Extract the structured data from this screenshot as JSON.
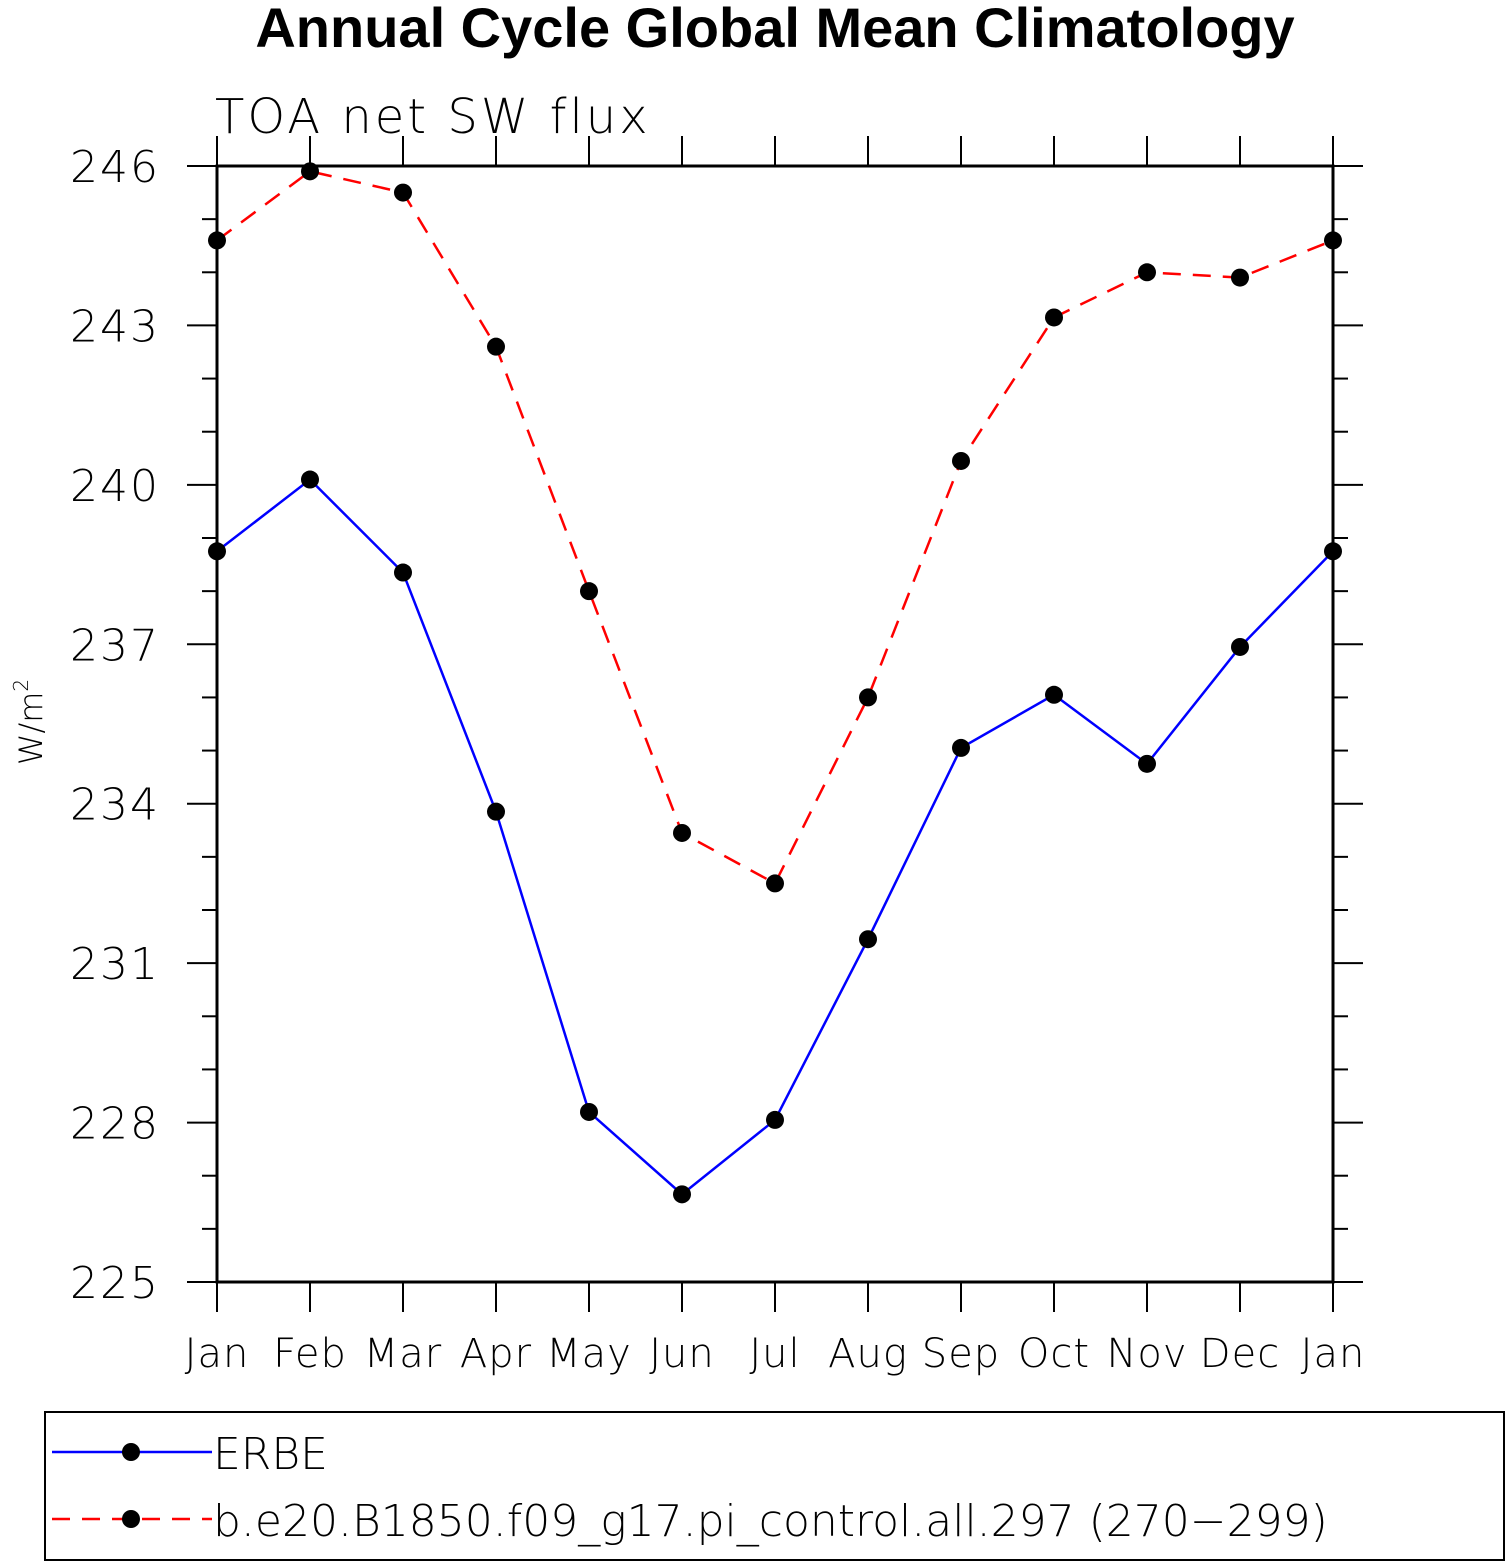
{
  "chart_data": {
    "type": "line",
    "title": "Annual Cycle Global Mean Climatology",
    "subtitle": "TOA net SW flux",
    "xlabel": "",
    "ylabel": "W/m",
    "ylabel_sup": "2",
    "categories": [
      "Jan",
      "Feb",
      "Mar",
      "Apr",
      "May",
      "Jun",
      "Jul",
      "Aug",
      "Sep",
      "Oct",
      "Nov",
      "Dec",
      "Jan"
    ],
    "ylim": [
      225,
      246
    ],
    "yticks": [
      225,
      228,
      231,
      234,
      237,
      240,
      243,
      246
    ],
    "grid": false,
    "legend_position": "bottom",
    "series": [
      {
        "name": "ERBE",
        "color": "#0000ff",
        "dash": "solid",
        "marker": "circle",
        "values": [
          238.75,
          240.1,
          238.35,
          233.85,
          228.2,
          226.65,
          228.05,
          231.45,
          235.05,
          236.05,
          234.75,
          236.95,
          238.75
        ]
      },
      {
        "name": "b.e20.B1850.f09_g17.pi_control.all.297 (270−299)",
        "color": "#ff0000",
        "dash": "dashed",
        "marker": "circle",
        "values": [
          244.6,
          245.9,
          245.5,
          242.6,
          238.0,
          233.45,
          232.5,
          236.0,
          240.45,
          243.15,
          244.0,
          243.9,
          244.6
        ]
      }
    ]
  }
}
